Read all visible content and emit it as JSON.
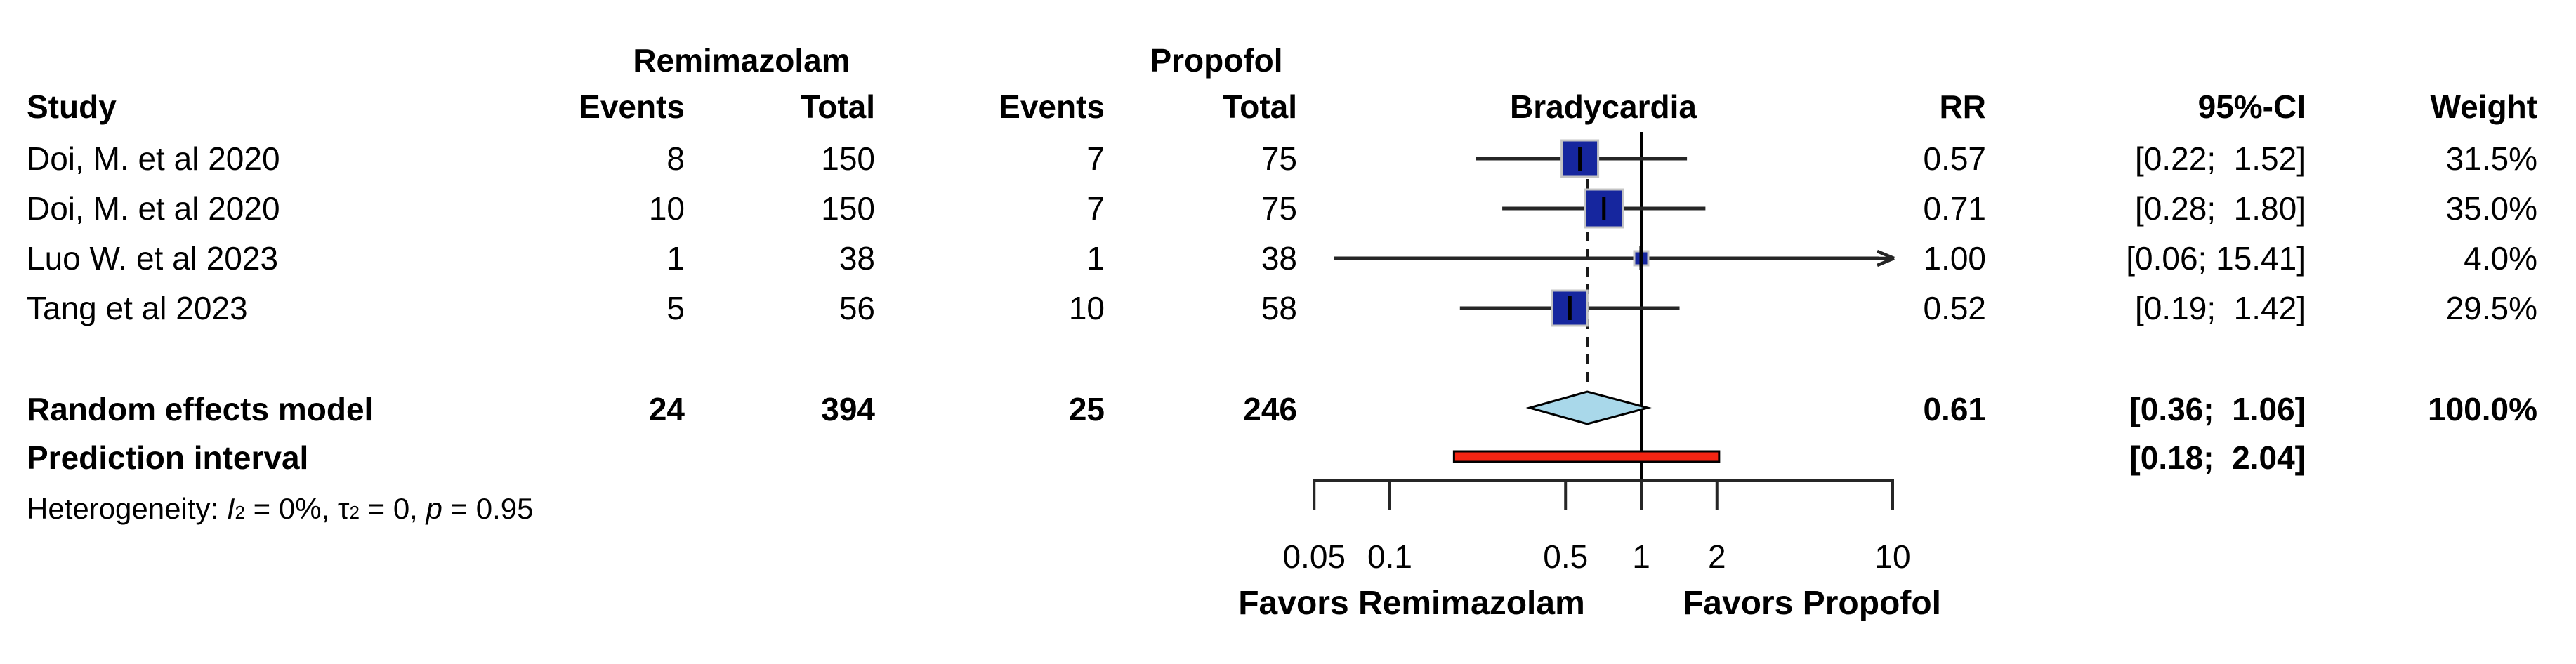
{
  "chart_data": {
    "type": "forest",
    "title": "Bradycardia",
    "group_headers": {
      "treatment": "Remimazolam",
      "control": "Propofol"
    },
    "columns": {
      "study": "Study",
      "events_treatment": "Events",
      "total_treatment": "Total",
      "events_control": "Events",
      "total_control": "Total",
      "plot_title": "Bradycardia",
      "rr": "RR",
      "ci": "95%-CI",
      "weight": "Weight"
    },
    "studies": [
      {
        "name": "Doi, M. et al 2020",
        "rem_events": "8",
        "rem_total": "150",
        "prop_events": "7",
        "prop_total": "75",
        "rr": 0.57,
        "ci_low": 0.22,
        "ci_high": 1.52,
        "weight": 31.5,
        "rr_label": "0.57",
        "ci_label": "[0.22;  1.52]",
        "weight_label": "31.5%"
      },
      {
        "name": "Doi, M. et al 2020",
        "rem_events": "10",
        "rem_total": "150",
        "prop_events": "7",
        "prop_total": "75",
        "rr": 0.71,
        "ci_low": 0.28,
        "ci_high": 1.8,
        "weight": 35.0,
        "rr_label": "0.71",
        "ci_label": "[0.28;  1.80]",
        "weight_label": "35.0%"
      },
      {
        "name": "Luo W. et al 2023",
        "rem_events": "1",
        "rem_total": "38",
        "prop_events": "1",
        "prop_total": "38",
        "rr": 1.0,
        "ci_low": 0.06,
        "ci_high": 15.41,
        "weight": 4.0,
        "rr_label": "1.00",
        "ci_label": "[0.06; 15.41]",
        "weight_label": "4.0%"
      },
      {
        "name": "Tang et al 2023",
        "rem_events": "5",
        "rem_total": "56",
        "prop_events": "10",
        "prop_total": "58",
        "rr": 0.52,
        "ci_low": 0.19,
        "ci_high": 1.42,
        "weight": 29.5,
        "rr_label": "0.52",
        "ci_label": "[0.19;  1.42]",
        "weight_label": "29.5%"
      }
    ],
    "pooled": {
      "name": "Random effects model",
      "rem_events": "24",
      "rem_total": "394",
      "prop_events": "25",
      "prop_total": "246",
      "rr": 0.61,
      "ci_low": 0.36,
      "ci_high": 1.06,
      "rr_label": "0.61",
      "ci_label": "[0.36;  1.06]",
      "weight_label": "100.0%"
    },
    "prediction": {
      "name": "Prediction interval",
      "low": 0.18,
      "high": 2.04,
      "ci_label": "[0.18;  2.04]"
    },
    "heterogeneity": {
      "label": "Heterogeneity: ",
      "i": "I",
      "i_sup": "2",
      "mid": " = 0%, ",
      "tau": "τ",
      "tau_sup": "2",
      "mid2": " = 0, ",
      "p": "p",
      "end": " = 0.95"
    },
    "axis": {
      "scale": "log",
      "ticks": [
        0.05,
        0.1,
        0.5,
        1,
        2,
        10
      ],
      "tick_labels": [
        "0.05",
        "0.1",
        "0.5",
        "1",
        "2",
        "10"
      ],
      "ref_line": 1,
      "range": [
        0.05,
        10
      ],
      "favors_left": "Favors Remimazolam",
      "favors_right": "Favors Propofol"
    },
    "colors": {
      "square": "#16269E",
      "square_border": "#C4C4C4",
      "diamond_fill": "#A9D8EA",
      "diamond_border": "#000000",
      "prediction_bar": "#F42513",
      "prediction_border": "#000000",
      "line": "#262626",
      "ref_line": "#000000"
    }
  }
}
